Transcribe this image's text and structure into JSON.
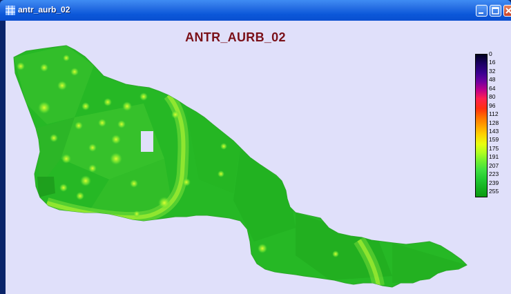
{
  "window": {
    "title": "antr_aurb_02",
    "controls": [
      "minimize",
      "maximize",
      "close"
    ]
  },
  "map": {
    "title": "ANTR_AURB_02",
    "background_color": "#e0e0fa",
    "title_color": "#7a1018",
    "base_fill_color": "#22b824",
    "high_value_color": "#bfff22"
  },
  "legend": {
    "labels": [
      "0",
      "16",
      "32",
      "48",
      "64",
      "80",
      "96",
      "112",
      "128",
      "143",
      "159",
      "175",
      "191",
      "207",
      "223",
      "239",
      "255"
    ],
    "colors": [
      "#000020",
      "#1a0060",
      "#3a0090",
      "#7000a0",
      "#c0008a",
      "#ff2050",
      "#ff3010",
      "#ff7000",
      "#ffa000",
      "#ffd000",
      "#e8ff10",
      "#b0ff20",
      "#70f030",
      "#40e040",
      "#20c830",
      "#14b020",
      "#0a9a10"
    ]
  }
}
